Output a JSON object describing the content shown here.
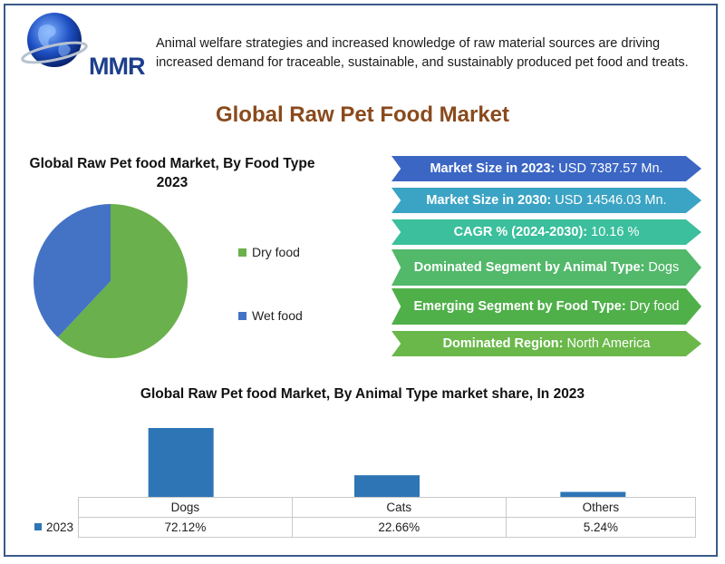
{
  "header": {
    "logo_text": "MMR",
    "headline": "Animal welfare strategies and increased knowledge of raw material sources are driving increased demand for traceable, sustainable, and sustainably produced pet food and treats."
  },
  "main_title": "Global Raw Pet Food Market",
  "stats": [
    {
      "label": "Market Size in 2023:",
      "value": "USD 7387.57 Mn.",
      "color": "#3b66c4"
    },
    {
      "label": "Market Size in 2030:",
      "value": "USD 14546.03 Mn.",
      "color": "#3ba3c4"
    },
    {
      "label": "CAGR % (2024-2030):",
      "value": "10.16 %",
      "color": "#3bbf9c"
    },
    {
      "label": "Dominated Segment by Animal Type:",
      "value": "Dogs",
      "color": "#52b86a"
    },
    {
      "label": "Emerging Segment by Food Type:",
      "value": "Dry food",
      "color": "#4fb04a"
    },
    {
      "label": "Dominated Region:",
      "value": "North America",
      "color": "#6ab84a"
    }
  ],
  "chart_data": [
    {
      "type": "pie",
      "title": "Global Raw Pet food Market, By Food Type 2023",
      "categories": [
        "Dry food",
        "Wet food"
      ],
      "values": [
        62,
        38
      ],
      "colors": [
        "#6ab04c",
        "#4472c4"
      ],
      "legend": "right"
    },
    {
      "type": "bar",
      "title": "Global Raw Pet food Market, By Animal Type market share, In 2023",
      "categories": [
        "Dogs",
        "Cats",
        "Others"
      ],
      "series": [
        {
          "name": "2023",
          "values": [
            72.12,
            22.66,
            5.24
          ]
        }
      ],
      "value_labels": [
        "72.12%",
        "22.66%",
        "5.24%"
      ],
      "colors": [
        "#2e75b6"
      ],
      "legend": "data-table"
    }
  ]
}
